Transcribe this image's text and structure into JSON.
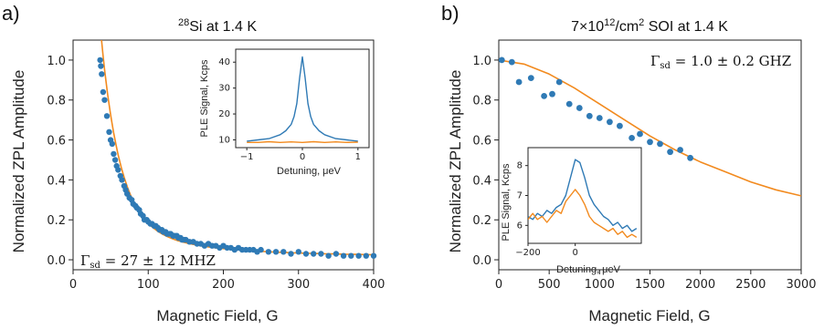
{
  "colors": {
    "series_points": "#2f7ab5",
    "series_fit": "#f28a1e",
    "inset_a": "#2f7ab5",
    "inset_b": "#f28a1e",
    "axis": "#222222"
  },
  "chart_data": [
    {
      "panel_label": "a)",
      "type": "scatter",
      "title_sup": "28",
      "title": "Si at 1.4 K",
      "xlabel": "Magnetic Field, G",
      "ylabel": "Normalized ZPL Amplitude",
      "xlim": [
        0,
        400
      ],
      "ylim": [
        -0.05,
        1.1
      ],
      "xticks": [
        0,
        100,
        200,
        300,
        400
      ],
      "yticks": [
        0.0,
        0.2,
        0.4,
        0.6,
        0.8,
        1.0
      ],
      "annotation_symbol": "Γ",
      "annotation_sub": "sd",
      "annotation": " = 27 ± 12 MHZ",
      "points": {
        "x": [
          36,
          37,
          38,
          40,
          42,
          45,
          48,
          50,
          52,
          54,
          56,
          58,
          60,
          63,
          65,
          68,
          70,
          72,
          75,
          78,
          80,
          83,
          85,
          88,
          90,
          93,
          95,
          98,
          100,
          103,
          105,
          108,
          110,
          113,
          115,
          118,
          120,
          123,
          125,
          128,
          130,
          133,
          135,
          138,
          140,
          143,
          145,
          148,
          150,
          155,
          160,
          165,
          170,
          175,
          180,
          185,
          190,
          195,
          200,
          205,
          210,
          215,
          220,
          225,
          230,
          235,
          240,
          245,
          250,
          260,
          270,
          280,
          290,
          300,
          310,
          320,
          330,
          340,
          350,
          360,
          370,
          380,
          390,
          400
        ],
        "y": [
          1.0,
          0.97,
          0.93,
          0.84,
          0.8,
          0.72,
          0.64,
          0.6,
          0.58,
          0.53,
          0.5,
          0.47,
          0.45,
          0.42,
          0.4,
          0.37,
          0.35,
          0.33,
          0.31,
          0.3,
          0.28,
          0.27,
          0.26,
          0.25,
          0.23,
          0.22,
          0.2,
          0.2,
          0.19,
          0.18,
          0.18,
          0.17,
          0.17,
          0.16,
          0.15,
          0.15,
          0.14,
          0.14,
          0.13,
          0.13,
          0.13,
          0.12,
          0.12,
          0.12,
          0.11,
          0.11,
          0.1,
          0.1,
          0.1,
          0.09,
          0.09,
          0.08,
          0.08,
          0.07,
          0.08,
          0.07,
          0.07,
          0.06,
          0.07,
          0.06,
          0.06,
          0.05,
          0.06,
          0.05,
          0.05,
          0.05,
          0.05,
          0.04,
          0.05,
          0.04,
          0.04,
          0.04,
          0.03,
          0.04,
          0.03,
          0.03,
          0.03,
          0.02,
          0.03,
          0.02,
          0.02,
          0.02,
          0.02,
          0.02
        ]
      },
      "inset": {
        "type": "line",
        "xlabel": "Detuning, μeV",
        "ylabel": "PLE Signal, Kcps",
        "xlim": [
          -1.2,
          1.2
        ],
        "ylim": [
          7,
          45
        ],
        "xticks": [
          -1,
          0,
          1
        ],
        "yticks": [
          10,
          20,
          30,
          40
        ],
        "series": [
          {
            "x": [
              -1.0,
              -0.8,
              -0.6,
              -0.4,
              -0.3,
              -0.2,
              -0.15,
              -0.1,
              -0.05,
              0.0,
              0.05,
              0.1,
              0.15,
              0.2,
              0.3,
              0.4,
              0.6,
              0.8,
              1.0
            ],
            "values": [
              9.5,
              10,
              10.5,
              12,
              13.5,
              16,
              19,
              24,
              34,
              42,
              34,
              24,
              19,
              16,
              13.5,
              12,
              10.5,
              10,
              9.5
            ]
          },
          {
            "x": [
              -1.0,
              -0.8,
              -0.6,
              -0.4,
              -0.2,
              0.0,
              0.2,
              0.4,
              0.6,
              0.8,
              1.0
            ],
            "values": [
              9,
              9,
              9.3,
              9,
              9.2,
              9,
              9.3,
              9,
              9.2,
              9,
              9.1
            ]
          }
        ]
      }
    },
    {
      "panel_label": "b)",
      "type": "scatter",
      "title": "7×10",
      "title_sup": "12",
      "title_tail": "/cm",
      "title_sup2": "2",
      "title_end": " SOI at 1.4 K",
      "xlabel": "Magnetic Field, G",
      "ylabel": "Normalized ZPL Amplitude",
      "xlim": [
        0,
        3000
      ],
      "ylim": [
        -0.05,
        1.1
      ],
      "xticks": [
        0,
        500,
        1000,
        1500,
        2000,
        2500,
        3000
      ],
      "yticks": [
        0.0,
        0.2,
        0.4,
        0.6,
        0.8,
        1.0
      ],
      "annotation_symbol": "Γ",
      "annotation_sub": "sd",
      "annotation": " = 1.0 ± 0.2 GHZ",
      "points": {
        "x": [
          30,
          130,
          200,
          320,
          450,
          530,
          600,
          700,
          800,
          900,
          1000,
          1100,
          1200,
          1320,
          1400,
          1500,
          1600,
          1700,
          1800,
          1900
        ],
        "y": [
          1.0,
          0.99,
          0.89,
          0.91,
          0.82,
          0.83,
          0.89,
          0.78,
          0.76,
          0.72,
          0.71,
          0.69,
          0.67,
          0.61,
          0.63,
          0.59,
          0.58,
          0.54,
          0.55,
          0.51
        ]
      },
      "fit": {
        "x": [
          0,
          250,
          500,
          750,
          1000,
          1250,
          1500,
          1750,
          2000,
          2250,
          2500,
          2750,
          3000
        ],
        "y": [
          1.0,
          0.98,
          0.93,
          0.86,
          0.78,
          0.7,
          0.62,
          0.55,
          0.49,
          0.44,
          0.39,
          0.35,
          0.32
        ]
      },
      "inset": {
        "type": "line",
        "xlabel": "Detuning, μeV",
        "ylabel": "PLE Signal, Kcps",
        "xlim": [
          -200,
          280
        ],
        "ylim": [
          5.4,
          8.6
        ],
        "xticks": [
          -200,
          0
        ],
        "yticks": [
          6,
          7,
          8
        ],
        "series": [
          {
            "x": [
              -200,
              -180,
              -160,
              -140,
              -120,
              -100,
              -80,
              -60,
              -40,
              -20,
              0,
              20,
              40,
              60,
              80,
              100,
              120,
              140,
              160,
              180,
              200,
              220,
              240,
              260
            ],
            "values": [
              6.3,
              6.2,
              6.4,
              6.3,
              6.5,
              6.4,
              6.6,
              6.7,
              7.0,
              7.6,
              8.2,
              8.1,
              7.6,
              7.0,
              6.7,
              6.5,
              6.3,
              6.2,
              6.0,
              6.1,
              5.9,
              6.0,
              5.8,
              5.9
            ]
          },
          {
            "x": [
              -200,
              -180,
              -160,
              -140,
              -120,
              -100,
              -80,
              -60,
              -40,
              -20,
              0,
              20,
              40,
              60,
              80,
              100,
              120,
              140,
              160,
              180,
              200,
              220,
              240,
              260
            ],
            "values": [
              6.2,
              6.4,
              6.2,
              6.3,
              6.1,
              6.3,
              6.5,
              6.4,
              6.8,
              7.0,
              7.2,
              7.0,
              6.7,
              6.3,
              6.1,
              6.0,
              5.9,
              5.8,
              5.9,
              5.7,
              5.8,
              5.6,
              5.7,
              5.6
            ]
          }
        ]
      }
    }
  ]
}
